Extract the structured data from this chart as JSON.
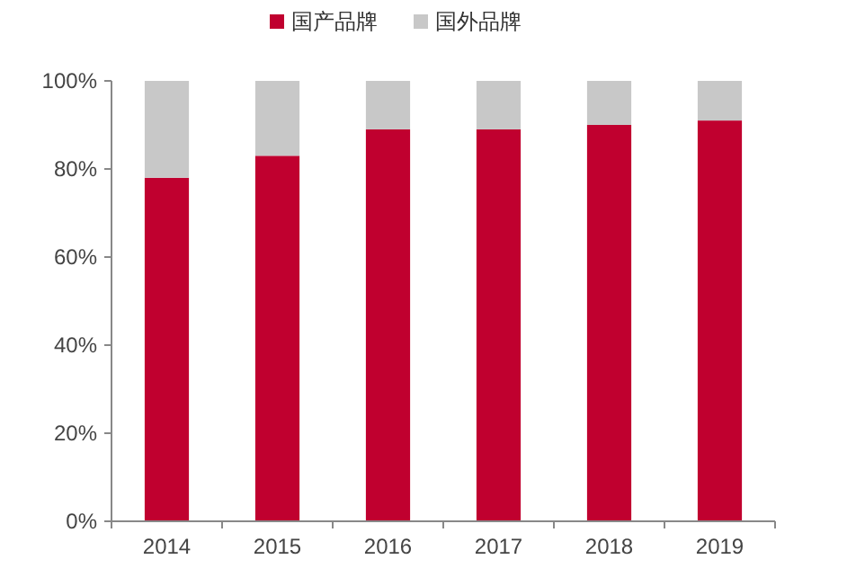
{
  "chart_data": {
    "type": "bar",
    "stacked": true,
    "categories": [
      "2014",
      "2015",
      "2016",
      "2017",
      "2018",
      "2019"
    ],
    "series": [
      {
        "name": "国产品牌",
        "color": "#c0002f",
        "values": [
          78,
          83,
          89,
          89,
          90,
          91
        ]
      },
      {
        "name": "国外品牌",
        "color": "#c8c8c8",
        "values": [
          22,
          17,
          11,
          11,
          10,
          9
        ]
      }
    ],
    "ylim": [
      0,
      100
    ],
    "yticks": [
      {
        "value": 0,
        "label": "0%"
      },
      {
        "value": 20,
        "label": "20%"
      },
      {
        "value": 40,
        "label": "40%"
      },
      {
        "value": 60,
        "label": "60%"
      },
      {
        "value": 80,
        "label": "80%"
      },
      {
        "value": 100,
        "label": "100%"
      }
    ],
    "legend": "top",
    "grid": false
  }
}
